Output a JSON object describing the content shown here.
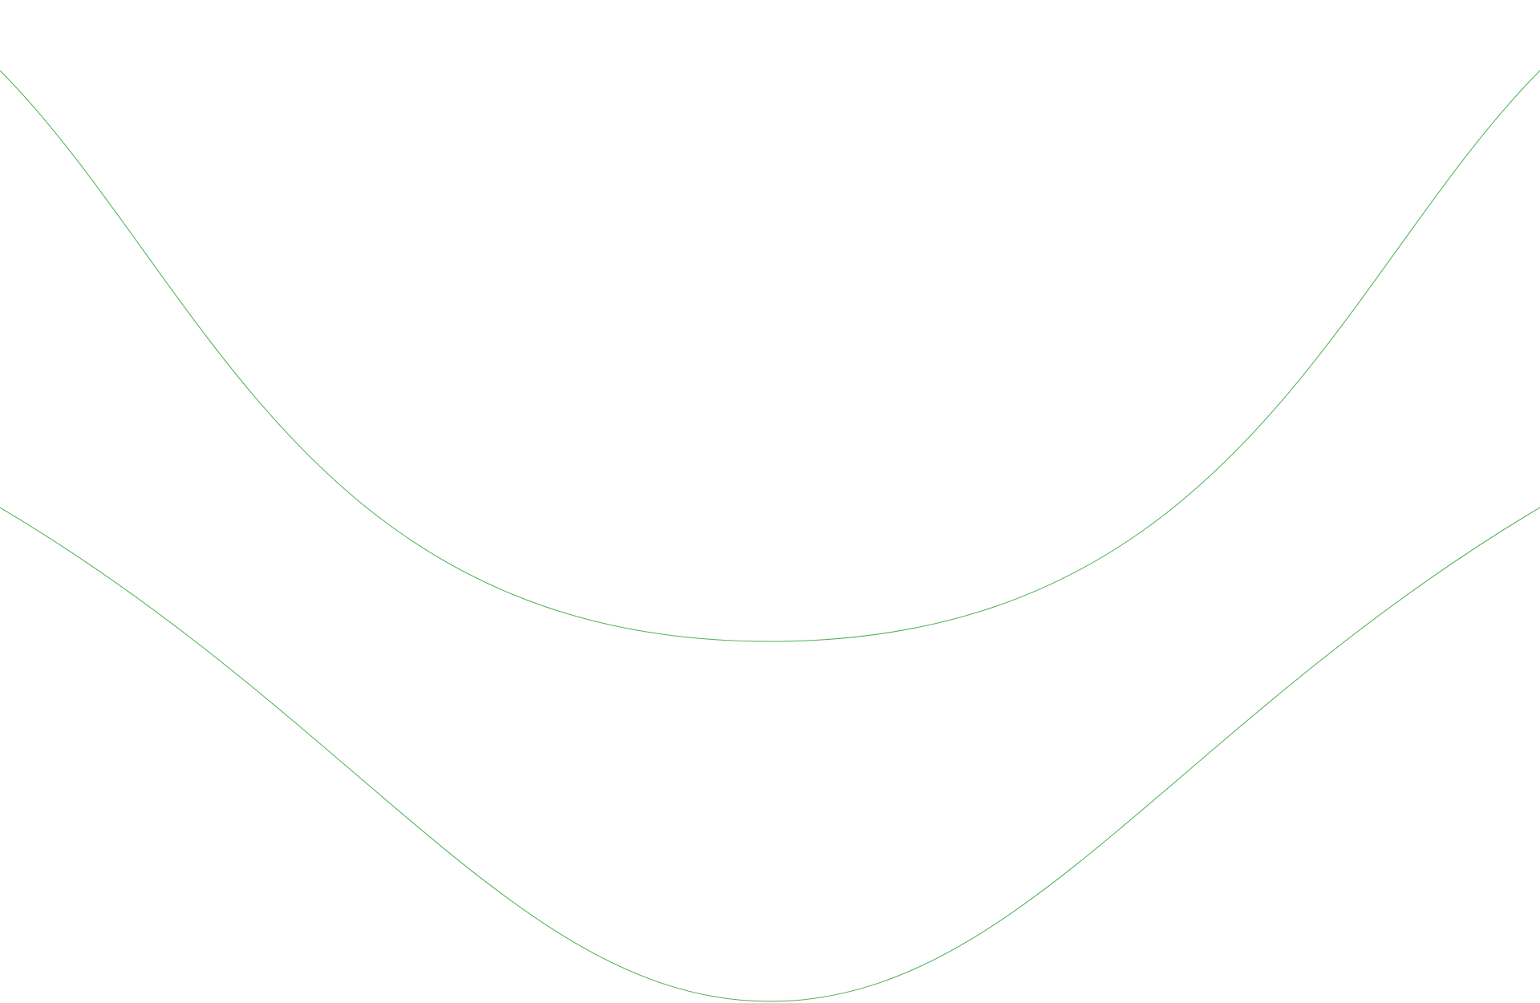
{
  "background_color": "#ffffff",
  "curves": [
    {
      "name": "upper-wave",
      "color": "#4caf50"
    },
    {
      "name": "lower-wave",
      "color": "#4caf50"
    }
  ]
}
